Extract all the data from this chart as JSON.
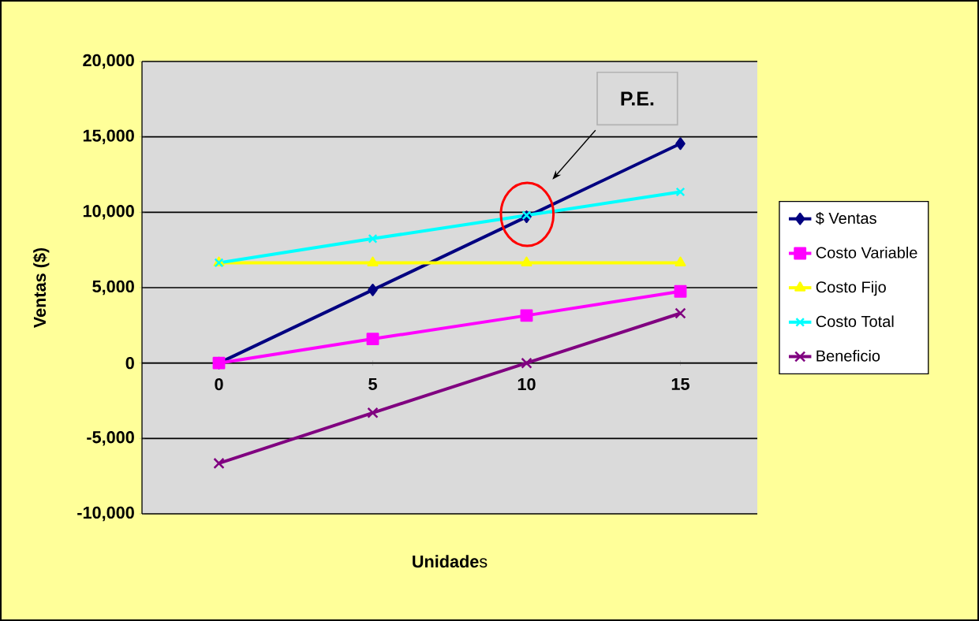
{
  "chart_data": {
    "type": "line",
    "xlabel": "**Unidade**s",
    "ylabel": "Ventas ($)",
    "categories": [
      "0",
      "5",
      "10",
      "15"
    ],
    "series": [
      {
        "name": "$ Ventas",
        "color": "#000080",
        "marker": "diamond",
        "values": [
          0,
          4850,
          9700,
          14550
        ]
      },
      {
        "name": "Costo Variable",
        "color": "#ff00ff",
        "marker": "square",
        "values": [
          0,
          1600,
          3150,
          4750
        ]
      },
      {
        "name": "Costo Fijo",
        "color": "#ffff00",
        "marker": "triangle",
        "values": [
          6650,
          6650,
          6650,
          6650
        ]
      },
      {
        "name": "Costo Total",
        "color": "#00ffff",
        "marker": "cross",
        "values": [
          6650,
          8250,
          9800,
          11350
        ]
      },
      {
        "name": "Beneficio",
        "color": "#800080",
        "marker": "cross",
        "values": [
          -6650,
          -3300,
          0,
          3300
        ]
      }
    ],
    "ylim": [
      -10000,
      20000
    ],
    "yticks": [
      {
        "value": -10000,
        "label": "-10,000"
      },
      {
        "value": -5000,
        "label": "-5,000"
      },
      0,
      {
        "value": 5000,
        "label": "5,000"
      },
      {
        "value": 10000,
        "label": "10,000"
      },
      {
        "value": 15000,
        "label": "15,000"
      },
      {
        "value": 20000,
        "label": "20,000"
      }
    ],
    "grid": "y",
    "legend": "right",
    "line_style": "solid",
    "annotations": [
      "P.E."
    ]
  }
}
